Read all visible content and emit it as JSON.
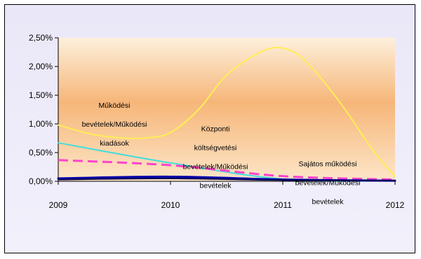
{
  "chart_data": {
    "type": "line",
    "title": "",
    "xlabel": "",
    "ylabel": "",
    "x": [
      2009,
      2010,
      2011,
      2012
    ],
    "x_tick_labels": [
      "2009",
      "2010",
      "2011",
      "2012"
    ],
    "ylim": [
      0,
      0.025
    ],
    "y_ticks": [
      0,
      0.005,
      0.01,
      0.015,
      0.02,
      0.025
    ],
    "y_tick_labels": [
      "0,00%",
      "0,50%",
      "1,00%",
      "1,50%",
      "2,00%",
      "2,50%"
    ],
    "grid": "horizontal major gridlines off",
    "legend": "none",
    "series": [
      {
        "color": "#ffee55",
        "style": "solid",
        "points": [
          [
            2009,
            0.0098
          ],
          [
            2009.3,
            0.0082
          ],
          [
            2009.6,
            0.0075
          ],
          [
            2009.8,
            0.0076
          ],
          [
            2010,
            0.0085
          ],
          [
            2010.25,
            0.0125
          ],
          [
            2010.5,
            0.0185
          ],
          [
            2010.8,
            0.0225
          ],
          [
            2011,
            0.0232
          ],
          [
            2011.2,
            0.021
          ],
          [
            2011.5,
            0.014
          ],
          [
            2011.8,
            0.0055
          ],
          [
            2012,
            0.0008
          ]
        ]
      },
      {
        "color": "#44dddd",
        "style": "solid",
        "points": [
          [
            2009,
            0.0067
          ],
          [
            2010,
            0.0032
          ],
          [
            2011,
            0.0004
          ],
          [
            2012,
            0.0001
          ]
        ]
      },
      {
        "color": "#ff44cc",
        "style": "dashed",
        "points": [
          [
            2009,
            0.0037
          ],
          [
            2010,
            0.0028
          ],
          [
            2011,
            0.0009
          ],
          [
            2012,
            0.0003
          ]
        ]
      },
      {
        "color": "#0000aa",
        "style": "solid",
        "points": [
          [
            2009,
            0.0005
          ],
          [
            2010,
            0.0008
          ],
          [
            2011,
            0.0003
          ],
          [
            2012,
            0.0001
          ]
        ]
      },
      {
        "color": "#000055",
        "style": "solid",
        "points": [
          [
            2009,
            0.0003
          ],
          [
            2010,
            0.0005
          ],
          [
            2011,
            0.0002
          ],
          [
            2012,
            0.0001
          ]
        ]
      }
    ],
    "annotations": [
      {
        "lines": [
          "Működési",
          "bevételek/Működési",
          "kiadások"
        ],
        "x": 2009.5,
        "y": 0.0128
      },
      {
        "lines": [
          "Központi",
          "költségvetési",
          "bevételek/Működési",
          "bevételek"
        ],
        "x": 2010.4,
        "y": 0.0087
      },
      {
        "lines": [
          "Sajátos működési",
          "bevételek/Működési",
          "bevételek"
        ],
        "x": 2011.4,
        "y": 0.0026
      }
    ]
  }
}
